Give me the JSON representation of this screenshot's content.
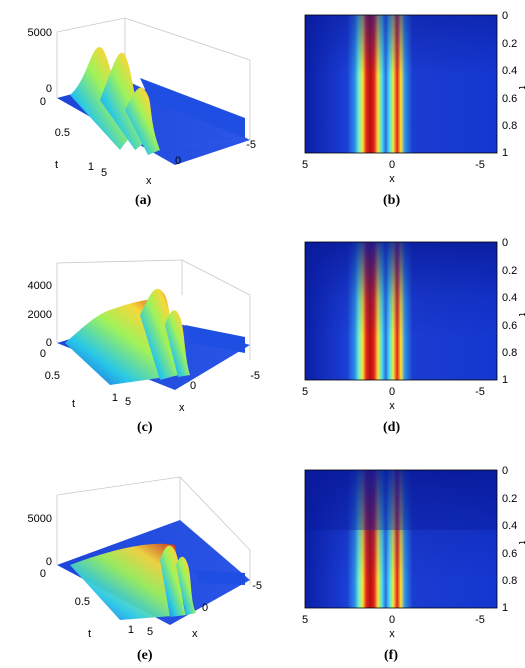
{
  "panels": {
    "a": {
      "label": "(a)",
      "z_ticks": [
        "5000",
        "0"
      ],
      "t_ticks": [
        "0",
        "0.5",
        "1"
      ],
      "x_ticks": [
        "5",
        "0",
        "-5"
      ],
      "t_label": "t",
      "x_label": "x"
    },
    "b": {
      "label": "(b)",
      "x_ticks": [
        "5",
        "0",
        "-5"
      ],
      "t_ticks": [
        "0",
        "0.2",
        "0.4",
        "0.6",
        "0.8",
        "1"
      ],
      "x_label": "x",
      "t_label": "t"
    },
    "c": {
      "label": "(c)",
      "z_ticks": [
        "4000",
        "2000",
        "0"
      ],
      "t_ticks": [
        "0",
        "0.5",
        "1"
      ],
      "x_ticks": [
        "5",
        "0",
        "-5"
      ],
      "t_label": "t",
      "x_label": "x"
    },
    "d": {
      "label": "(d)",
      "x_ticks": [
        "5",
        "0",
        "-5"
      ],
      "t_ticks": [
        "0",
        "0.2",
        "0.4",
        "0.6",
        "0.8",
        "1"
      ],
      "x_label": "x",
      "t_label": "t"
    },
    "e": {
      "label": "(e)",
      "z_ticks": [
        "5000",
        "0"
      ],
      "t_ticks": [
        "0",
        "0.5",
        "1"
      ],
      "x_ticks": [
        "5",
        "0",
        "-5"
      ],
      "t_label": "t",
      "x_label": "x"
    },
    "f": {
      "label": "(f)",
      "x_ticks": [
        "5",
        "0",
        "-5"
      ],
      "t_ticks": [
        "0",
        "0.2",
        "0.4",
        "0.6",
        "0.8",
        "1"
      ],
      "x_label": "x",
      "t_label": "t"
    }
  },
  "chart_data": [
    {
      "type": "surface",
      "panel": "a",
      "x_range": [
        5,
        -5
      ],
      "t_range": [
        0,
        1
      ],
      "z_range": [
        0,
        5000
      ],
      "peak": 5000,
      "colormap": "jet"
    },
    {
      "type": "heatmap",
      "panel": "b",
      "x_range": [
        5,
        -5
      ],
      "t_range": [
        0,
        1
      ],
      "colormap": "jet"
    },
    {
      "type": "surface",
      "panel": "c",
      "x_range": [
        5,
        -5
      ],
      "t_range": [
        0,
        1
      ],
      "z_range": [
        0,
        4000
      ],
      "peak": 4500,
      "colormap": "jet"
    },
    {
      "type": "heatmap",
      "panel": "d",
      "x_range": [
        5,
        -5
      ],
      "t_range": [
        0,
        1
      ],
      "colormap": "jet"
    },
    {
      "type": "surface",
      "panel": "e",
      "x_range": [
        5,
        -5
      ],
      "t_range": [
        0,
        1
      ],
      "z_range": [
        0,
        5000
      ],
      "peak": 3500,
      "colormap": "jet"
    },
    {
      "type": "heatmap",
      "panel": "f",
      "x_range": [
        5,
        -5
      ],
      "t_range": [
        0,
        1
      ],
      "colormap": "jet"
    }
  ]
}
